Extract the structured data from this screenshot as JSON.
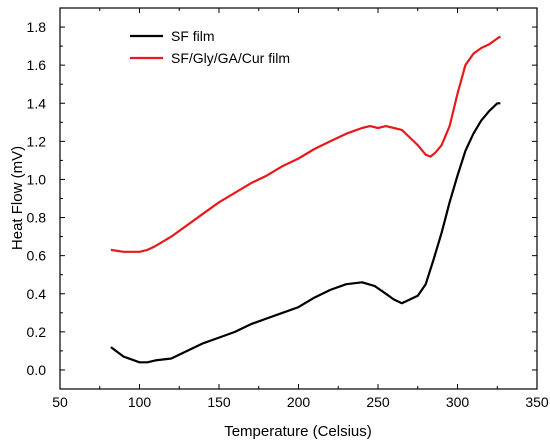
{
  "chart_data": {
    "type": "line",
    "title": "",
    "xlabel": "Temperature (Celsius)",
    "ylabel": "Heat Flow (mV)",
    "xlim": [
      50,
      350
    ],
    "ylim": [
      -0.1,
      1.9
    ],
    "xticks": [
      50,
      100,
      150,
      200,
      250,
      300,
      350
    ],
    "yticks": [
      0.0,
      0.2,
      0.4,
      0.6,
      0.8,
      1.0,
      1.2,
      1.4,
      1.6,
      1.8
    ],
    "xtick_labels": [
      "50",
      "100",
      "150",
      "200",
      "250",
      "300",
      "350"
    ],
    "ytick_labels": [
      "0.0",
      "0.2",
      "0.4",
      "0.6",
      "0.8",
      "1.0",
      "1.2",
      "1.4",
      "1.6",
      "1.8"
    ],
    "grid": false,
    "legend_position": "top-left",
    "series": [
      {
        "name": "SF film",
        "color": "#000000",
        "x": [
          82,
          90,
          100,
          105,
          110,
          120,
          130,
          140,
          150,
          160,
          170,
          180,
          190,
          200,
          210,
          220,
          230,
          240,
          248,
          255,
          260,
          265,
          270,
          275,
          280,
          285,
          290,
          295,
          300,
          305,
          310,
          315,
          320,
          325,
          327
        ],
        "y": [
          0.12,
          0.07,
          0.04,
          0.04,
          0.05,
          0.06,
          0.1,
          0.14,
          0.17,
          0.2,
          0.24,
          0.27,
          0.3,
          0.33,
          0.38,
          0.42,
          0.45,
          0.46,
          0.44,
          0.4,
          0.37,
          0.35,
          0.37,
          0.39,
          0.45,
          0.58,
          0.72,
          0.88,
          1.02,
          1.15,
          1.24,
          1.31,
          1.36,
          1.4,
          1.4
        ]
      },
      {
        "name": "SF/Gly/GA/Cur film",
        "color": "#e8191c",
        "x": [
          82,
          90,
          100,
          105,
          110,
          120,
          130,
          140,
          150,
          160,
          170,
          180,
          190,
          200,
          210,
          220,
          230,
          240,
          245,
          250,
          255,
          260,
          265,
          270,
          275,
          280,
          283,
          286,
          290,
          295,
          300,
          305,
          310,
          315,
          320,
          325,
          327
        ],
        "y": [
          0.63,
          0.62,
          0.62,
          0.63,
          0.65,
          0.7,
          0.76,
          0.82,
          0.88,
          0.93,
          0.98,
          1.02,
          1.07,
          1.11,
          1.16,
          1.2,
          1.24,
          1.27,
          1.28,
          1.27,
          1.28,
          1.27,
          1.26,
          1.22,
          1.18,
          1.13,
          1.12,
          1.14,
          1.18,
          1.28,
          1.45,
          1.6,
          1.66,
          1.69,
          1.71,
          1.74,
          1.75
        ]
      }
    ]
  }
}
